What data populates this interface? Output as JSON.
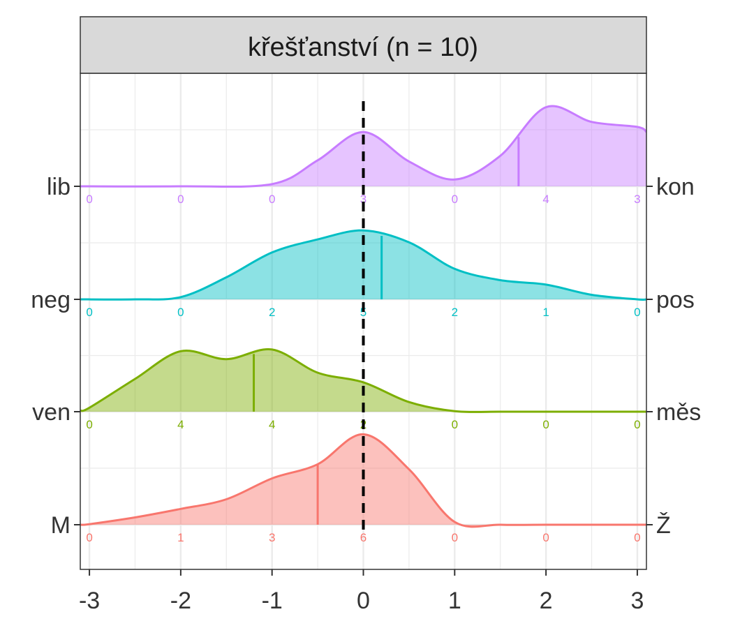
{
  "chart_data": {
    "type": "area",
    "subtype": "ridgeline-density",
    "title": "křešťanství (n = 10)",
    "xlabel": "",
    "ylabel": "",
    "xlim": [
      -3.1,
      3.1
    ],
    "x_ticks": [
      -3,
      -2,
      -1,
      0,
      1,
      2,
      3
    ],
    "x_tick_labels": [
      "-3",
      "-2",
      "-1",
      "0",
      "1",
      "2",
      "3"
    ],
    "reference_line_x": 0,
    "grid": true,
    "legend": "none",
    "series": [
      {
        "left_label": "M",
        "right_label": "Ž",
        "color": "#F8766D",
        "counts_x": [
          -3,
          -2,
          -1,
          0,
          1,
          2,
          3
        ],
        "counts": [
          "0",
          "1",
          "3",
          "6",
          "0",
          "0",
          "0"
        ],
        "mean": -0.5,
        "density": [
          [
            -3.1,
            0.0
          ],
          [
            -3.0,
            0.01
          ],
          [
            -2.5,
            0.13
          ],
          [
            -2.0,
            0.28
          ],
          [
            -1.5,
            0.45
          ],
          [
            -1.0,
            0.82
          ],
          [
            -0.5,
            1.07
          ],
          [
            0.0,
            1.6
          ],
          [
            0.5,
            0.98
          ],
          [
            1.0,
            0.05
          ],
          [
            1.5,
            0.0
          ],
          [
            2.0,
            0.0
          ],
          [
            3.1,
            0.0
          ]
        ]
      },
      {
        "left_label": "ven",
        "right_label": "měs",
        "color": "#7CAE00",
        "counts_x": [
          -3,
          -2,
          -1,
          0,
          1,
          2,
          3
        ],
        "counts": [
          "0",
          "4",
          "4",
          "2",
          "0",
          "0",
          "0"
        ],
        "mean": -1.2,
        "density": [
          [
            -3.1,
            0.02
          ],
          [
            -3.0,
            0.07
          ],
          [
            -2.5,
            0.58
          ],
          [
            -2.0,
            1.07
          ],
          [
            -1.5,
            0.93
          ],
          [
            -1.0,
            1.1
          ],
          [
            -0.5,
            0.69
          ],
          [
            0.0,
            0.52
          ],
          [
            0.5,
            0.17
          ],
          [
            1.0,
            0.01
          ],
          [
            1.5,
            0.0
          ],
          [
            2.0,
            0.0
          ],
          [
            3.1,
            0.0
          ]
        ]
      },
      {
        "left_label": "neg",
        "right_label": "pos",
        "color": "#00BFC4",
        "counts_x": [
          -3,
          -2,
          -1,
          0,
          1,
          2,
          3
        ],
        "counts": [
          "0",
          "0",
          "2",
          "5",
          "2",
          "1",
          "0"
        ],
        "mean": 0.2,
        "density": [
          [
            -3.1,
            0.0
          ],
          [
            -2.5,
            0.0
          ],
          [
            -2.0,
            0.04
          ],
          [
            -1.5,
            0.39
          ],
          [
            -1.0,
            0.83
          ],
          [
            -0.5,
            1.06
          ],
          [
            0.0,
            1.22
          ],
          [
            0.5,
            1.01
          ],
          [
            1.0,
            0.54
          ],
          [
            1.5,
            0.34
          ],
          [
            2.0,
            0.26
          ],
          [
            2.5,
            0.08
          ],
          [
            3.0,
            0.0
          ],
          [
            3.1,
            0.0
          ]
        ]
      },
      {
        "left_label": "lib",
        "right_label": "kon",
        "color": "#C77CFF",
        "counts_x": [
          -3,
          -2,
          -1,
          0,
          1,
          2,
          3
        ],
        "counts": [
          "0",
          "0",
          "0",
          "3",
          "0",
          "4",
          "3"
        ],
        "mean": 1.7,
        "density": [
          [
            -3.1,
            0.0
          ],
          [
            -2.0,
            0.0
          ],
          [
            -1.0,
            0.04
          ],
          [
            -0.5,
            0.46
          ],
          [
            0.0,
            0.96
          ],
          [
            0.5,
            0.44
          ],
          [
            1.0,
            0.12
          ],
          [
            1.5,
            0.54
          ],
          [
            2.0,
            1.4
          ],
          [
            2.5,
            1.14
          ],
          [
            3.0,
            1.05
          ],
          [
            3.1,
            0.96
          ]
        ]
      }
    ]
  }
}
